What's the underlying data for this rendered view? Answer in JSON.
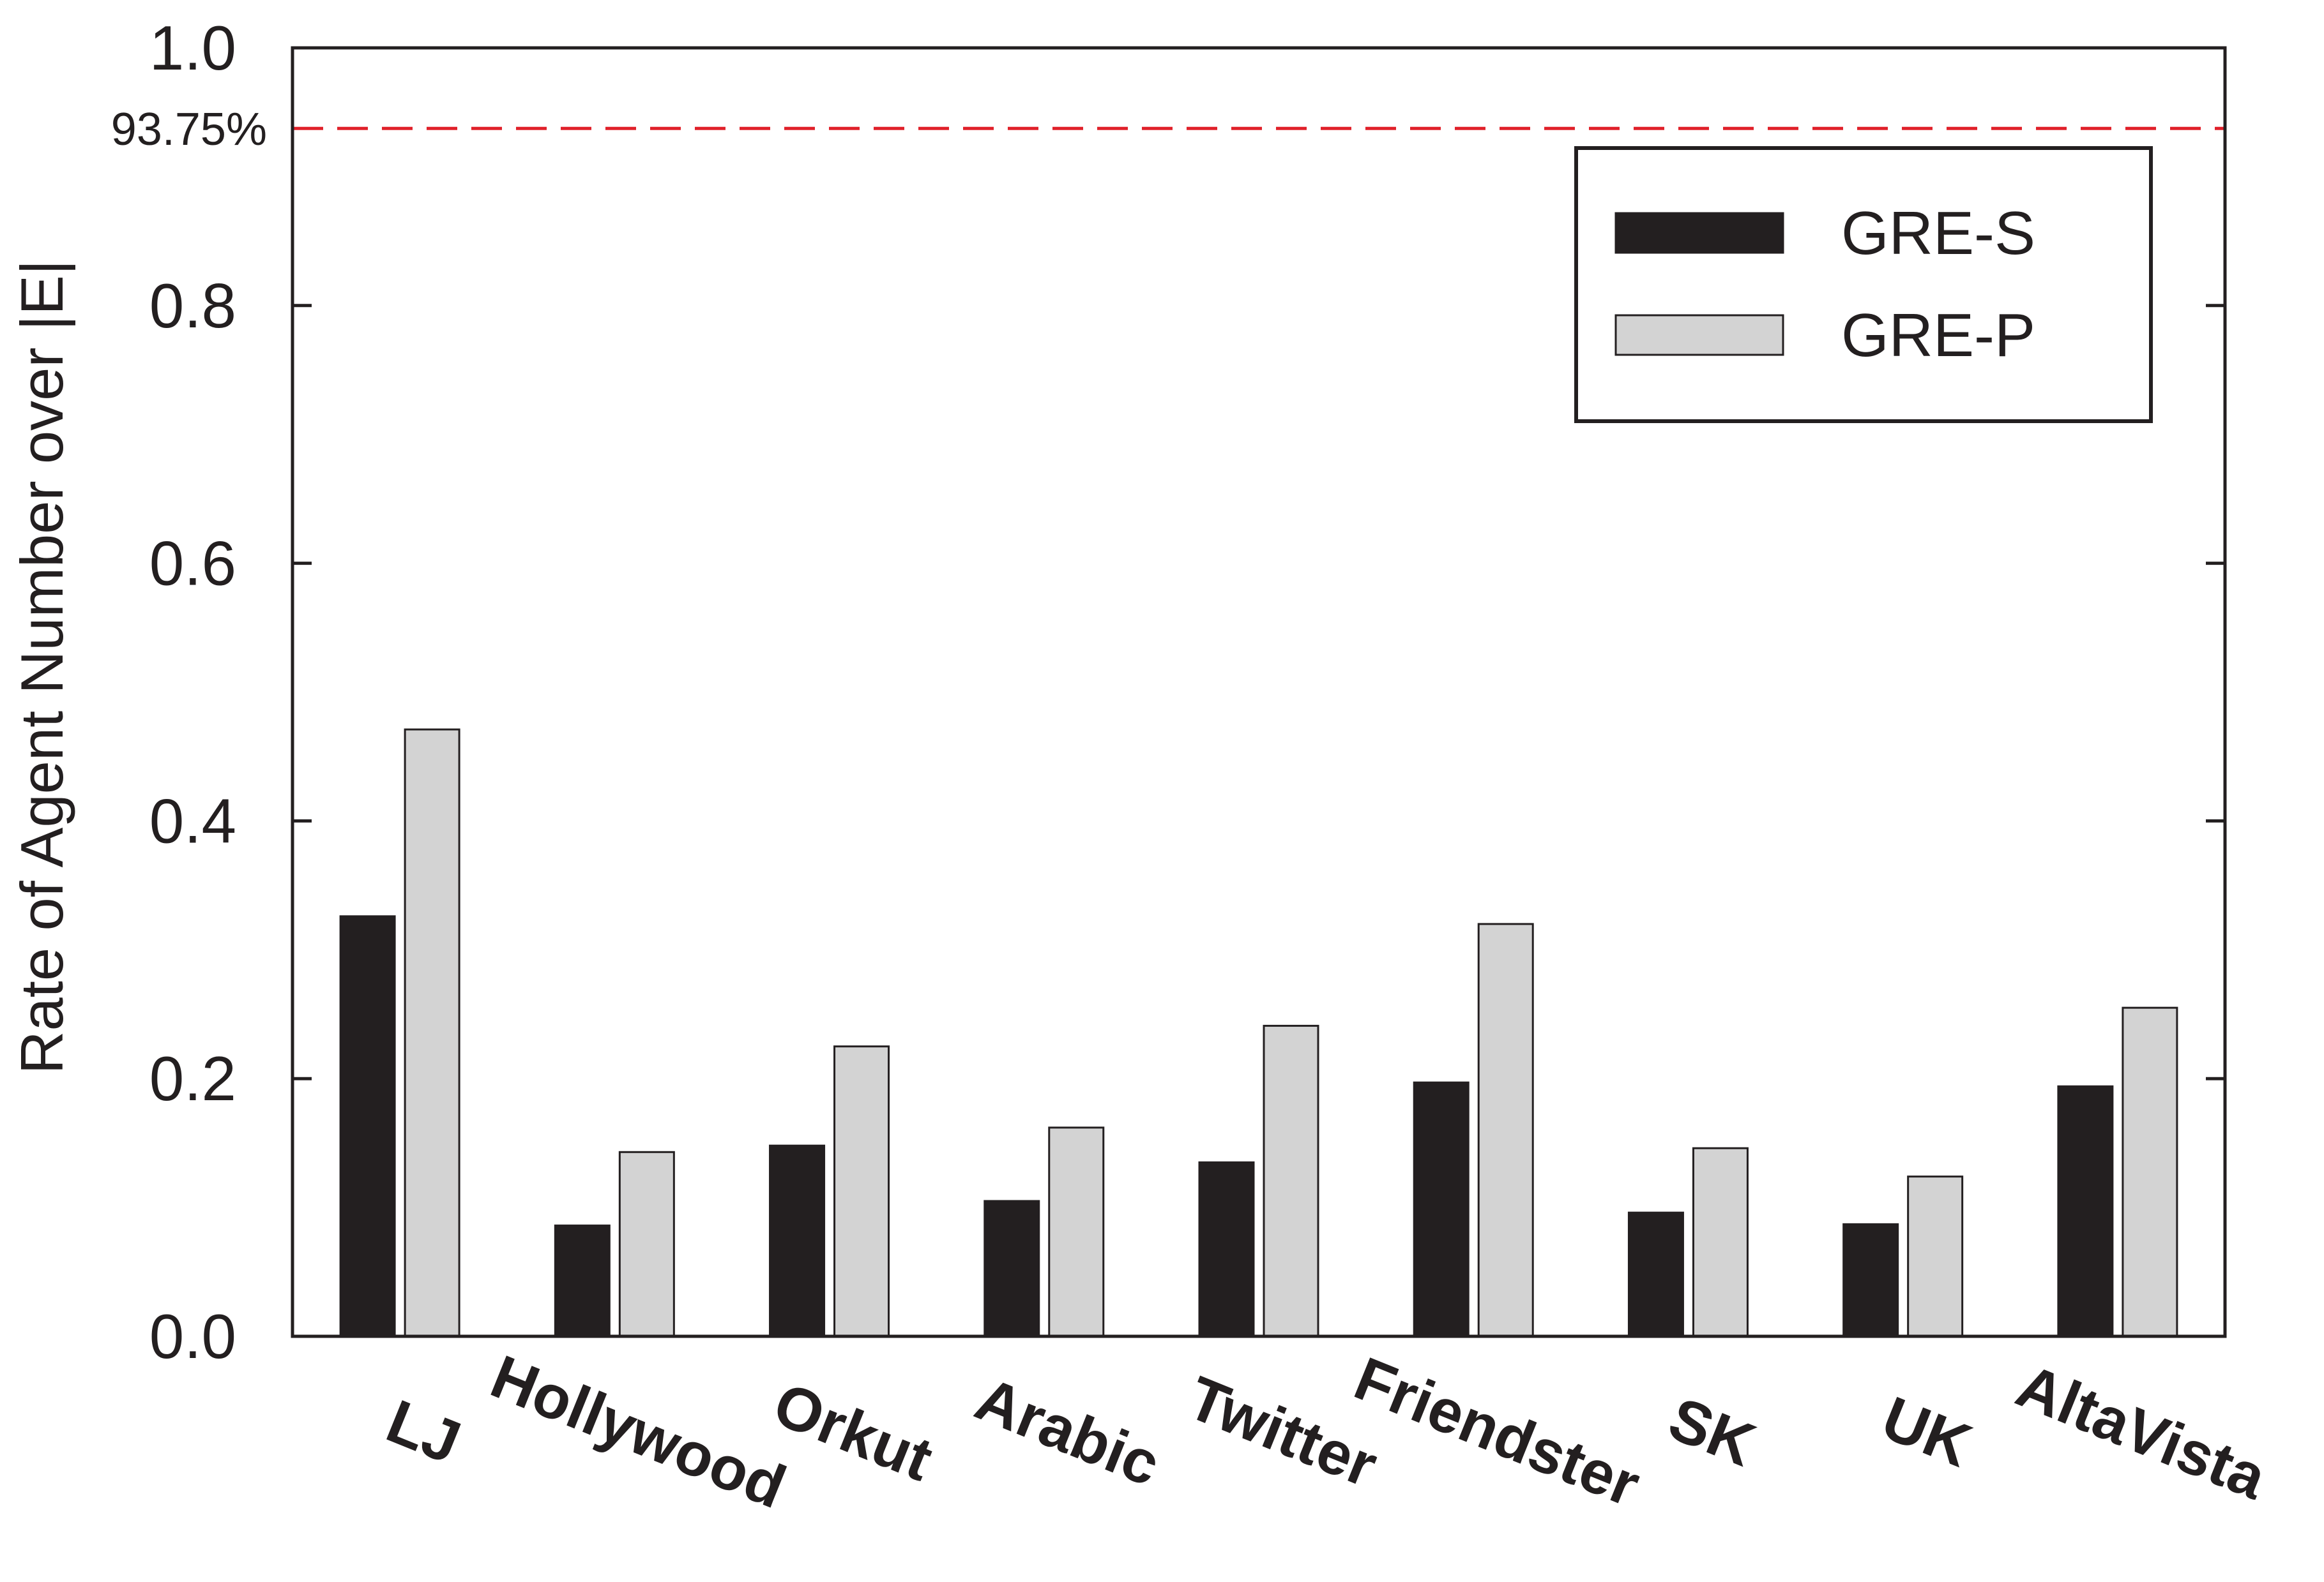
{
  "chart_data": {
    "type": "bar",
    "title": "",
    "xlabel": "",
    "ylabel": "Rate of Agent Number over |E|",
    "ylim": [
      0,
      1.0
    ],
    "yticks": [
      "0.0",
      "0.2",
      "0.4",
      "0.6",
      "0.8",
      "1.0"
    ],
    "categories": [
      "LJ",
      "Hollywood",
      "Orkut",
      "Arabic",
      "Twitter",
      "Friendster",
      "SK",
      "UK",
      "AltaVista"
    ],
    "series": [
      {
        "name": "GRE-S",
        "color": "#231f20",
        "values": [
          0.326,
          0.086,
          0.148,
          0.105,
          0.135,
          0.197,
          0.096,
          0.087,
          0.194
        ]
      },
      {
        "name": "GRE-P",
        "color": "#d3d3d3",
        "values": [
          0.471,
          0.143,
          0.225,
          0.162,
          0.241,
          0.32,
          0.146,
          0.124,
          0.255
        ]
      }
    ],
    "reference_line": {
      "value": 0.9375,
      "label": "93.75%",
      "color": "#e0202a",
      "style": "dashed"
    },
    "legend_position": "top-right",
    "grid": false
  }
}
